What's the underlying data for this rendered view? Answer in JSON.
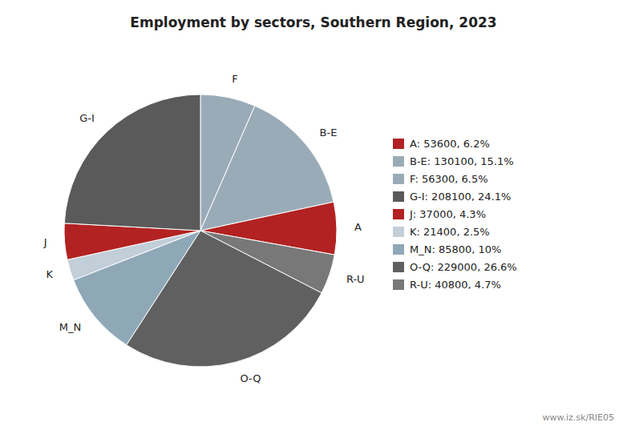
{
  "chart_data": {
    "type": "pie",
    "title": "Employment by sectors, Southern Region, 2023",
    "categories": [
      "F",
      "B-E",
      "A",
      "R-U",
      "O-Q",
      "M_N",
      "K",
      "J",
      "G-I"
    ],
    "values": [
      56300,
      130100,
      53600,
      40800,
      229000,
      85800,
      21400,
      37000,
      208100
    ],
    "colors": [
      "#9aabb8",
      "#9aabb8",
      "#b22222",
      "#787878",
      "#606060",
      "#8fa8b8",
      "#c2ced8",
      "#b22222",
      "#5a5a5a"
    ],
    "legend_entries": [
      {
        "label": "A: 53600, 6.2%",
        "color": "#b22222"
      },
      {
        "label": "B-E: 130100, 15.1%",
        "color": "#9aabb8"
      },
      {
        "label": "F: 56300, 6.5%",
        "color": "#9aabb8"
      },
      {
        "label": "G-I: 208100, 24.1%",
        "color": "#5a5a5a"
      },
      {
        "label": "J: 37000, 4.3%",
        "color": "#b22222"
      },
      {
        "label": "K: 21400, 2.5%",
        "color": "#c2ced8"
      },
      {
        "label": "M_N: 85800, 10%",
        "color": "#8fa8b8"
      },
      {
        "label": "O-Q: 229000, 26.6%",
        "color": "#606060"
      },
      {
        "label": "R-U: 40800, 4.7%",
        "color": "#787878"
      }
    ],
    "annotation": "www.iz.sk/RIE05"
  }
}
